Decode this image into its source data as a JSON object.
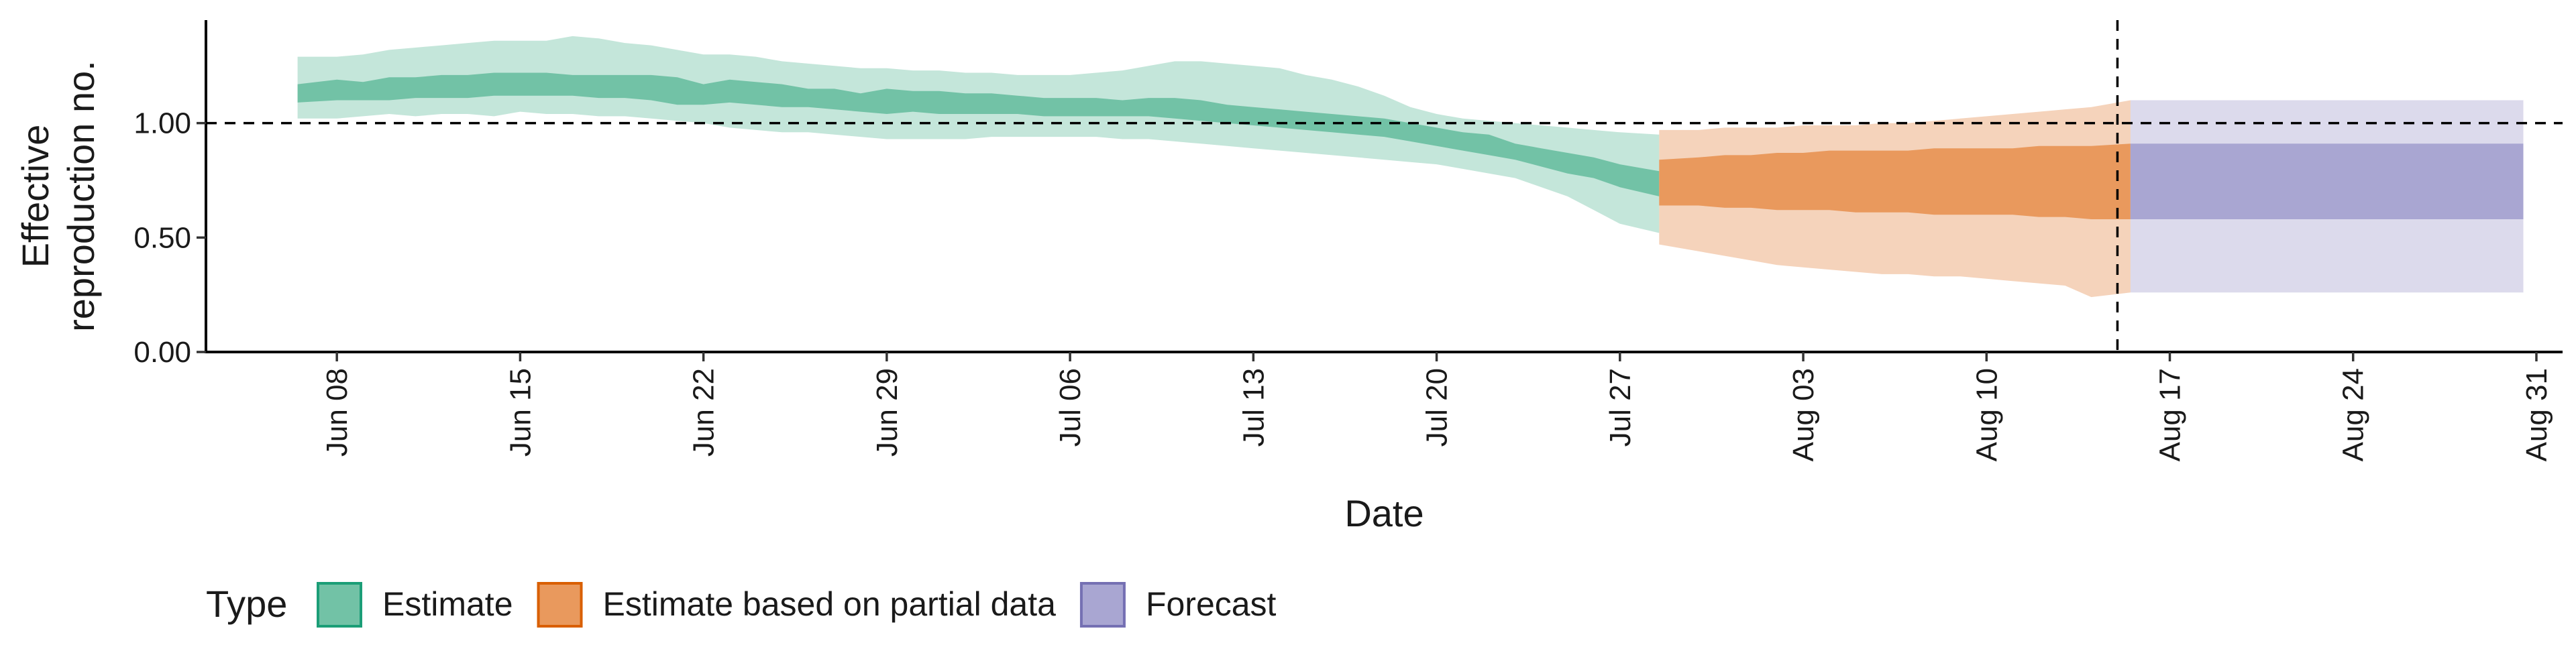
{
  "chart_data": {
    "type": "area",
    "xlabel": "Date",
    "ylabel_lines": [
      "Effective",
      "reproduction no."
    ],
    "ylim": [
      0,
      1.45
    ],
    "xlim": [
      "2020-06-03",
      "2020-09-01"
    ],
    "y_ticks": [
      0,
      0.5,
      1.0
    ],
    "y_tick_labels": [
      "0.00",
      "0.50",
      "1.00"
    ],
    "x_ticks": [
      "2020-06-08",
      "2020-06-15",
      "2020-06-22",
      "2020-06-29",
      "2020-07-06",
      "2020-07-13",
      "2020-07-20",
      "2020-07-27",
      "2020-08-03",
      "2020-08-10",
      "2020-08-17",
      "2020-08-24",
      "2020-08-31"
    ],
    "x_tick_labels": [
      "Jun 08",
      "Jun 15",
      "Jun 22",
      "Jun 29",
      "Jul 06",
      "Jul 13",
      "Jul 20",
      "Jul 27",
      "Aug 03",
      "Aug 10",
      "Aug 17",
      "Aug 24",
      "Aug 31"
    ],
    "reference_line_y": 1.0,
    "vertical_line_date": "2020-08-15",
    "grid": false,
    "legend": {
      "title": "Type",
      "position": "bottom-left",
      "items": [
        {
          "label": "Estimate",
          "fill": "#72c2a6",
          "border": "#1b9e77"
        },
        {
          "label": "Estimate based on partial data",
          "fill": "#e9995d",
          "border": "#d95f02"
        },
        {
          "label": "Forecast",
          "fill": "#a9a6d2",
          "border": "#7570b3"
        }
      ]
    },
    "series": [
      {
        "name": "Estimate",
        "color_outer": "#c4e6da",
        "color_inner": "#72c2a6",
        "x": [
          "2020-06-07",
          "2020-06-08",
          "2020-06-09",
          "2020-06-10",
          "2020-06-11",
          "2020-06-12",
          "2020-06-13",
          "2020-06-14",
          "2020-06-15",
          "2020-06-16",
          "2020-06-17",
          "2020-06-18",
          "2020-06-19",
          "2020-06-20",
          "2020-06-21",
          "2020-06-22",
          "2020-06-23",
          "2020-06-24",
          "2020-06-25",
          "2020-06-26",
          "2020-06-27",
          "2020-06-28",
          "2020-06-29",
          "2020-06-30",
          "2020-07-01",
          "2020-07-02",
          "2020-07-03",
          "2020-07-04",
          "2020-07-05",
          "2020-07-06",
          "2020-07-07",
          "2020-07-08",
          "2020-07-09",
          "2020-07-10",
          "2020-07-11",
          "2020-07-12",
          "2020-07-13",
          "2020-07-14",
          "2020-07-15",
          "2020-07-16",
          "2020-07-17",
          "2020-07-18",
          "2020-07-19",
          "2020-07-20",
          "2020-07-21",
          "2020-07-22",
          "2020-07-23",
          "2020-07-24",
          "2020-07-25",
          "2020-07-26",
          "2020-07-27",
          "2020-07-28"
        ],
        "lower90": [
          1.02,
          1.02,
          1.03,
          1.04,
          1.03,
          1.04,
          1.04,
          1.03,
          1.05,
          1.04,
          1.04,
          1.03,
          1.03,
          1.02,
          1.01,
          1.0,
          0.98,
          0.97,
          0.96,
          0.96,
          0.95,
          0.94,
          0.93,
          0.93,
          0.93,
          0.93,
          0.94,
          0.94,
          0.94,
          0.94,
          0.94,
          0.93,
          0.93,
          0.92,
          0.91,
          0.9,
          0.89,
          0.88,
          0.87,
          0.86,
          0.85,
          0.84,
          0.83,
          0.82,
          0.8,
          0.78,
          0.76,
          0.72,
          0.68,
          0.62,
          0.56,
          0.52
        ],
        "lower50": [
          1.09,
          1.1,
          1.1,
          1.1,
          1.11,
          1.11,
          1.11,
          1.12,
          1.12,
          1.12,
          1.12,
          1.11,
          1.11,
          1.1,
          1.08,
          1.08,
          1.09,
          1.08,
          1.07,
          1.07,
          1.06,
          1.05,
          1.04,
          1.05,
          1.04,
          1.04,
          1.04,
          1.04,
          1.03,
          1.03,
          1.03,
          1.03,
          1.03,
          1.02,
          1.01,
          1.0,
          0.99,
          0.98,
          0.97,
          0.96,
          0.95,
          0.94,
          0.92,
          0.9,
          0.88,
          0.86,
          0.84,
          0.81,
          0.78,
          0.76,
          0.72,
          0.68
        ],
        "upper50": [
          1.17,
          1.19,
          1.18,
          1.2,
          1.2,
          1.21,
          1.21,
          1.22,
          1.22,
          1.22,
          1.21,
          1.21,
          1.21,
          1.21,
          1.2,
          1.17,
          1.19,
          1.18,
          1.17,
          1.15,
          1.15,
          1.13,
          1.15,
          1.14,
          1.14,
          1.13,
          1.13,
          1.12,
          1.11,
          1.11,
          1.11,
          1.1,
          1.11,
          1.11,
          1.1,
          1.08,
          1.07,
          1.06,
          1.05,
          1.04,
          1.03,
          1.02,
          1.0,
          0.98,
          0.96,
          0.95,
          0.91,
          0.89,
          0.87,
          0.85,
          0.82,
          0.79
        ],
        "upper90": [
          1.29,
          1.29,
          1.3,
          1.32,
          1.33,
          1.34,
          1.35,
          1.36,
          1.36,
          1.36,
          1.38,
          1.37,
          1.35,
          1.34,
          1.32,
          1.3,
          1.3,
          1.29,
          1.27,
          1.26,
          1.25,
          1.24,
          1.24,
          1.23,
          1.23,
          1.22,
          1.22,
          1.21,
          1.21,
          1.21,
          1.22,
          1.23,
          1.25,
          1.27,
          1.27,
          1.26,
          1.25,
          1.24,
          1.21,
          1.19,
          1.16,
          1.12,
          1.07,
          1.04,
          1.02,
          1.01,
          1.0,
          0.99,
          0.98,
          0.97,
          0.96,
          0.95
        ]
      },
      {
        "name": "Estimate based on partial data",
        "color_outer": "#f5d3bb",
        "color_inner": "#e9995d",
        "x": [
          "2020-07-29",
          "2020-07-30",
          "2020-07-31",
          "2020-08-01",
          "2020-08-02",
          "2020-08-03",
          "2020-08-04",
          "2020-08-05",
          "2020-08-06",
          "2020-08-07",
          "2020-08-08",
          "2020-08-09",
          "2020-08-10",
          "2020-08-11",
          "2020-08-12",
          "2020-08-13",
          "2020-08-14",
          "2020-08-15"
        ],
        "lower90": [
          0.47,
          0.44,
          0.42,
          0.4,
          0.38,
          0.37,
          0.36,
          0.35,
          0.34,
          0.34,
          0.33,
          0.33,
          0.32,
          0.31,
          0.3,
          0.29,
          0.24,
          0.26
        ],
        "lower50": [
          0.64,
          0.64,
          0.63,
          0.63,
          0.62,
          0.62,
          0.62,
          0.61,
          0.61,
          0.61,
          0.6,
          0.6,
          0.6,
          0.6,
          0.59,
          0.59,
          0.58,
          0.58
        ],
        "upper50": [
          0.84,
          0.85,
          0.86,
          0.86,
          0.87,
          0.87,
          0.88,
          0.88,
          0.88,
          0.88,
          0.89,
          0.89,
          0.89,
          0.89,
          0.9,
          0.9,
          0.9,
          0.91
        ],
        "upper90": [
          0.97,
          0.97,
          0.98,
          0.98,
          0.98,
          0.99,
          0.99,
          0.99,
          1.0,
          1.0,
          1.01,
          1.02,
          1.03,
          1.04,
          1.05,
          1.06,
          1.07,
          1.1
        ]
      },
      {
        "name": "Forecast",
        "color_outer": "#dcdaec",
        "color_inner": "#a9a6d2",
        "x": [
          "2020-08-16",
          "2020-08-30"
        ],
        "lower90": [
          0.26,
          0.26
        ],
        "lower50": [
          0.58,
          0.58
        ],
        "upper50": [
          0.91,
          0.91
        ],
        "upper90": [
          1.1,
          1.1
        ]
      }
    ]
  }
}
